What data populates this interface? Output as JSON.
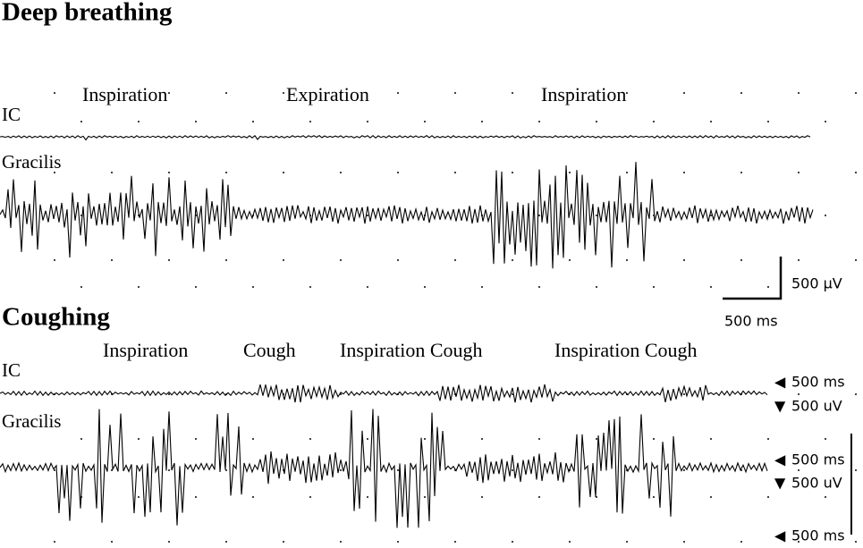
{
  "panels": [
    {
      "title": "Deep breathing",
      "phases": [
        "Inspiration",
        "Expiration",
        "Inspiration"
      ],
      "channels": [
        "IC",
        "Gracilis"
      ],
      "scale_bar": {
        "y": "500 µV",
        "x": "500 ms"
      }
    },
    {
      "title": "Coughing",
      "phases": [
        "Inspiration",
        "Cough",
        "Inspiration Cough",
        "Inspiration Cough"
      ],
      "channels": [
        "IC",
        "Gracilis"
      ],
      "markers": [
        "500 ms",
        "500 uV",
        "500 ms",
        "500 uV",
        "500 ms"
      ]
    }
  ]
}
